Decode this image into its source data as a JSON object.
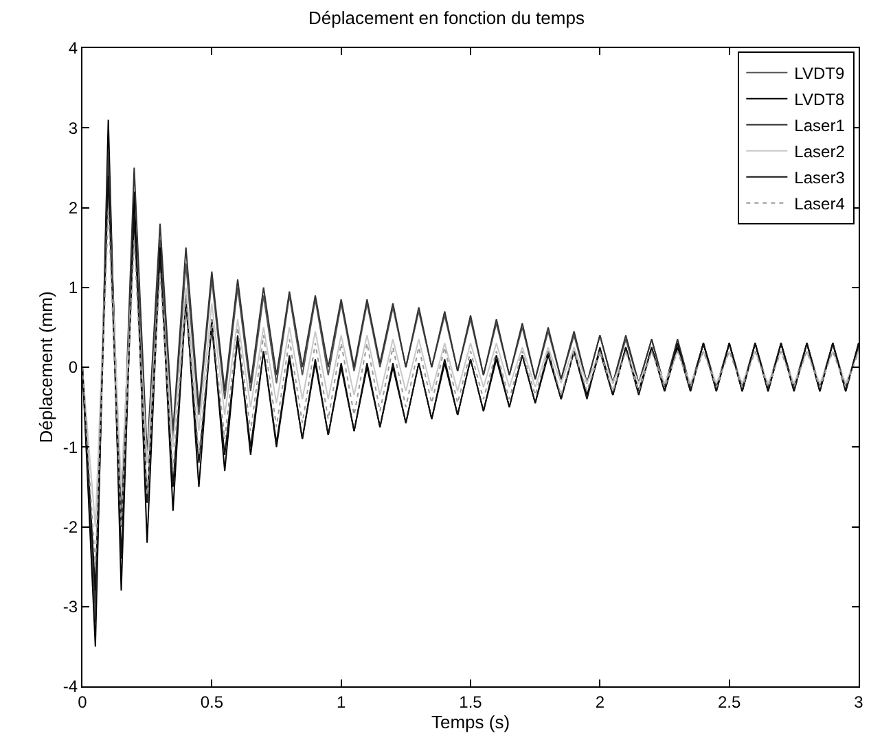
{
  "chart_data": {
    "type": "line",
    "title": "Déplacement en fonction du temps",
    "xlabel": "Temps (s)",
    "ylabel": "Déplacement (mm)",
    "x": [
      0,
      0.05,
      0.1,
      0.15,
      0.2,
      0.25,
      0.3,
      0.35,
      0.4,
      0.45,
      0.5,
      0.55,
      0.6,
      0.65,
      0.7,
      0.75,
      0.8,
      0.85,
      0.9,
      0.95,
      1,
      1.05,
      1.1,
      1.15,
      1.2,
      1.25,
      1.3,
      1.35,
      1.4,
      1.45,
      1.5,
      1.55,
      1.6,
      1.65,
      1.7,
      1.75,
      1.8,
      1.85,
      1.9,
      1.95,
      2,
      2.05,
      2.1,
      2.15,
      2.2,
      2.25,
      2.3,
      2.35,
      2.4,
      2.45,
      2.5,
      2.55,
      2.6,
      2.65,
      2.7,
      2.75,
      2.8,
      2.85,
      2.9,
      2.95,
      3
    ],
    "series": [
      {
        "name": "LVDT9",
        "color": "#555555",
        "values": [
          0,
          -3.2,
          2.6,
          -1.9,
          2.0,
          -1.2,
          1.6,
          -0.9,
          1.3,
          -0.6,
          1.1,
          -0.4,
          1.0,
          -0.3,
          0.9,
          -0.2,
          0.9,
          -0.1,
          0.85,
          -0.1,
          0.8,
          -0.05,
          0.8,
          0.0,
          0.75,
          0.0,
          0.7,
          0.0,
          0.65,
          -0.05,
          0.6,
          -0.1,
          0.55,
          -0.1,
          0.5,
          -0.15,
          0.45,
          -0.15,
          0.4,
          -0.2,
          0.4,
          -0.2,
          0.35,
          -0.2,
          0.35,
          -0.25,
          0.3,
          -0.25,
          0.3,
          -0.25,
          0.3,
          -0.25,
          0.3,
          -0.25,
          0.3,
          -0.25,
          0.3,
          -0.25,
          0.3,
          -0.25,
          0.25
        ]
      },
      {
        "name": "LVDT8",
        "color": "#000000",
        "values": [
          0,
          -3.5,
          3.1,
          -2.8,
          2.2,
          -2.2,
          1.5,
          -1.8,
          0.9,
          -1.5,
          0.6,
          -1.3,
          0.4,
          -1.1,
          0.2,
          -1.0,
          0.1,
          -0.9,
          0.05,
          -0.85,
          0.0,
          -0.8,
          0.0,
          -0.75,
          0.0,
          -0.7,
          0.05,
          -0.65,
          0.05,
          -0.6,
          0.1,
          -0.55,
          0.1,
          -0.5,
          0.15,
          -0.45,
          0.15,
          -0.4,
          0.2,
          -0.35,
          0.2,
          -0.35,
          0.25,
          -0.3,
          0.25,
          -0.3,
          0.25,
          -0.3,
          0.3,
          -0.3,
          0.3,
          -0.3,
          0.3,
          -0.3,
          0.3,
          -0.3,
          0.3,
          -0.3,
          0.3,
          -0.3,
          0.3
        ]
      },
      {
        "name": "Laser1",
        "color": "#333333",
        "values": [
          0,
          -3.0,
          2.7,
          -2.0,
          2.5,
          -1.1,
          1.8,
          -0.8,
          1.5,
          -0.5,
          1.2,
          -0.3,
          1.1,
          -0.2,
          1.0,
          -0.1,
          0.95,
          0.0,
          0.9,
          0.0,
          0.85,
          0.0,
          0.85,
          0.05,
          0.8,
          0.0,
          0.75,
          0.0,
          0.7,
          -0.05,
          0.65,
          -0.1,
          0.6,
          -0.1,
          0.55,
          -0.15,
          0.5,
          -0.15,
          0.45,
          -0.2,
          0.4,
          -0.2,
          0.4,
          -0.2,
          0.35,
          -0.25,
          0.35,
          -0.25,
          0.3,
          -0.25,
          0.3,
          -0.3,
          0.3,
          -0.3,
          0.3,
          -0.25,
          0.3,
          -0.3,
          0.3,
          -0.3,
          0.3
        ]
      },
      {
        "name": "Laser2",
        "color": "#c8c8c8",
        "values": [
          0,
          -2.0,
          2.2,
          -1.5,
          1.7,
          -1.2,
          1.3,
          -1.0,
          1.0,
          -0.8,
          0.8,
          -0.6,
          0.6,
          -0.5,
          0.5,
          -0.45,
          0.5,
          -0.4,
          0.45,
          -0.4,
          0.4,
          -0.35,
          0.4,
          -0.35,
          0.35,
          -0.3,
          0.35,
          -0.3,
          0.3,
          -0.3,
          0.3,
          -0.25,
          0.3,
          -0.25,
          0.25,
          -0.25,
          0.25,
          -0.2,
          0.25,
          -0.2,
          0.2,
          -0.2,
          0.2,
          -0.2,
          0.2,
          -0.2,
          0.2,
          -0.2,
          0.2,
          -0.2,
          0.2,
          -0.2,
          0.2,
          -0.2,
          0.2,
          -0.2,
          0.2,
          -0.2,
          0.2,
          -0.2,
          0.2
        ]
      },
      {
        "name": "Laser3",
        "color": "#111111",
        "values": [
          0,
          -2.8,
          2.4,
          -2.4,
          1.9,
          -1.7,
          1.4,
          -1.5,
          0.8,
          -1.2,
          0.5,
          -1.1,
          0.35,
          -1.0,
          0.2,
          -0.95,
          0.15,
          -0.9,
          0.1,
          -0.85,
          0.05,
          -0.8,
          0.05,
          -0.75,
          0.05,
          -0.7,
          0.05,
          -0.65,
          0.1,
          -0.6,
          0.1,
          -0.55,
          0.15,
          -0.5,
          0.15,
          -0.45,
          0.2,
          -0.4,
          0.2,
          -0.4,
          0.25,
          -0.35,
          0.25,
          -0.35,
          0.25,
          -0.3,
          0.3,
          -0.3,
          0.3,
          -0.3,
          0.3,
          -0.3,
          0.3,
          -0.3,
          0.3,
          -0.3,
          0.3,
          -0.3,
          0.3,
          -0.3,
          0.3
        ]
      },
      {
        "name": "Laser4",
        "color": "#999999",
        "line_style": "dotted",
        "values": [
          0,
          -2.5,
          2.0,
          -2.0,
          1.6,
          -1.6,
          1.2,
          -1.3,
          0.9,
          -1.1,
          0.6,
          -0.9,
          0.5,
          -0.8,
          0.4,
          -0.75,
          0.35,
          -0.7,
          0.3,
          -0.65,
          0.3,
          -0.6,
          0.3,
          -0.55,
          0.25,
          -0.5,
          0.25,
          -0.45,
          0.25,
          -0.45,
          0.2,
          -0.4,
          0.2,
          -0.4,
          0.2,
          -0.35,
          0.2,
          -0.35,
          0.2,
          -0.3,
          0.2,
          -0.3,
          0.2,
          -0.3,
          0.2,
          -0.25,
          0.2,
          -0.25,
          0.2,
          -0.25,
          0.2,
          -0.25,
          0.2,
          -0.25,
          0.2,
          -0.25,
          0.2,
          -0.25,
          0.2,
          -0.25,
          0.2
        ]
      }
    ],
    "xlim": [
      0,
      3
    ],
    "xticks": [
      {
        "value": 0,
        "label": "0"
      },
      {
        "value": 0.5,
        "label": "0.5"
      },
      {
        "value": 1,
        "label": "1"
      },
      {
        "value": 1.5,
        "label": "1.5"
      },
      {
        "value": 2,
        "label": "2"
      },
      {
        "value": 2.5,
        "label": "2.5"
      },
      {
        "value": 3,
        "label": "3"
      }
    ],
    "ylim": [
      -4,
      4
    ],
    "yticks": [
      -4,
      -3,
      -2,
      -1,
      0,
      1,
      2,
      3,
      4
    ],
    "legend": "top right",
    "line_style": "solid",
    "marker": "none"
  }
}
